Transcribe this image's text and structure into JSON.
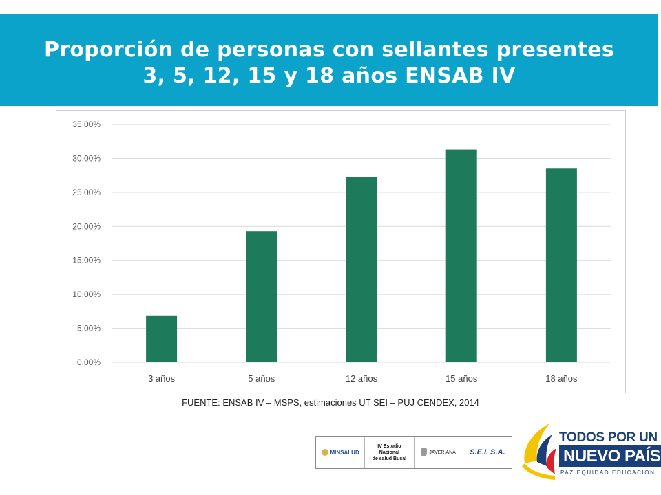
{
  "header": {
    "title_line1": "Proporción de personas con sellantes presentes",
    "title_line2": "3, 5, 12, 15 y 18 años ENSAB IV"
  },
  "chart_data": {
    "type": "bar",
    "categories": [
      "3 años",
      "5 años",
      "12 años",
      "15 años",
      "18 años"
    ],
    "values": [
      6.9,
      19.3,
      27.3,
      31.3,
      28.5
    ],
    "ylim": [
      0,
      35
    ],
    "yticks": [
      "0,00%",
      "5,00%",
      "10,00%",
      "15,00%",
      "20,00%",
      "25,00%",
      "30,00%",
      "35,00%"
    ],
    "bar_color": "#1d7a5a",
    "grid": true,
    "legend": "none"
  },
  "source": "FUENTE: ENSAB IV – MSPS, estimaciones UT SEI – PUJ CENDEX, 2014",
  "logos": {
    "minsalud": "MINSALUD",
    "ensab_line1": "IV Estudio Nacional",
    "ensab_line2": "de salud Bucal",
    "javeriana": "JAVERIANA",
    "sei": "S.E.I. S.A."
  },
  "brand": {
    "line1": "TODOS POR UN",
    "line2": "NUEVO PAÍS",
    "line3": "PAZ  EQUIDAD  EDUCACIÓN",
    "colors": [
      "#f5c400",
      "#1a3f7a",
      "#d9232d"
    ]
  }
}
